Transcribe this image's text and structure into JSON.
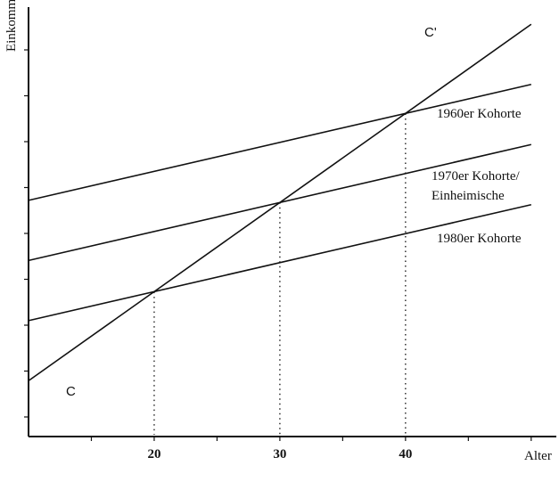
{
  "chart_data": {
    "type": "line",
    "title": "",
    "xlabel": "Alter",
    "ylabel": "Einkommen",
    "x_ticks": [
      20,
      30,
      40
    ],
    "xlim": [
      10,
      52
    ],
    "ylim": [
      0,
      100
    ],
    "grid": false,
    "series": [
      {
        "name": "1960er Kohorte",
        "x": [
          10,
          50
        ],
        "y": [
          55,
          82
        ]
      },
      {
        "name": "1970er Kohorte/ Einheimische",
        "label_lines": [
          "1970er Kohorte/",
          "Einheimische"
        ],
        "x": [
          10,
          50
        ],
        "y": [
          41,
          68
        ]
      },
      {
        "name": "1980er Kohorte",
        "x": [
          10,
          50
        ],
        "y": [
          27,
          54
        ]
      },
      {
        "name": "C–C'",
        "x": [
          10,
          50
        ],
        "y": [
          13,
          96
        ]
      }
    ],
    "point_labels": {
      "start": "C",
      "end": "C'"
    },
    "intersections": [
      {
        "x": 20,
        "y": 33.7
      },
      {
        "x": 30,
        "y": 54.5
      },
      {
        "x": 40,
        "y": 75.2
      }
    ]
  }
}
